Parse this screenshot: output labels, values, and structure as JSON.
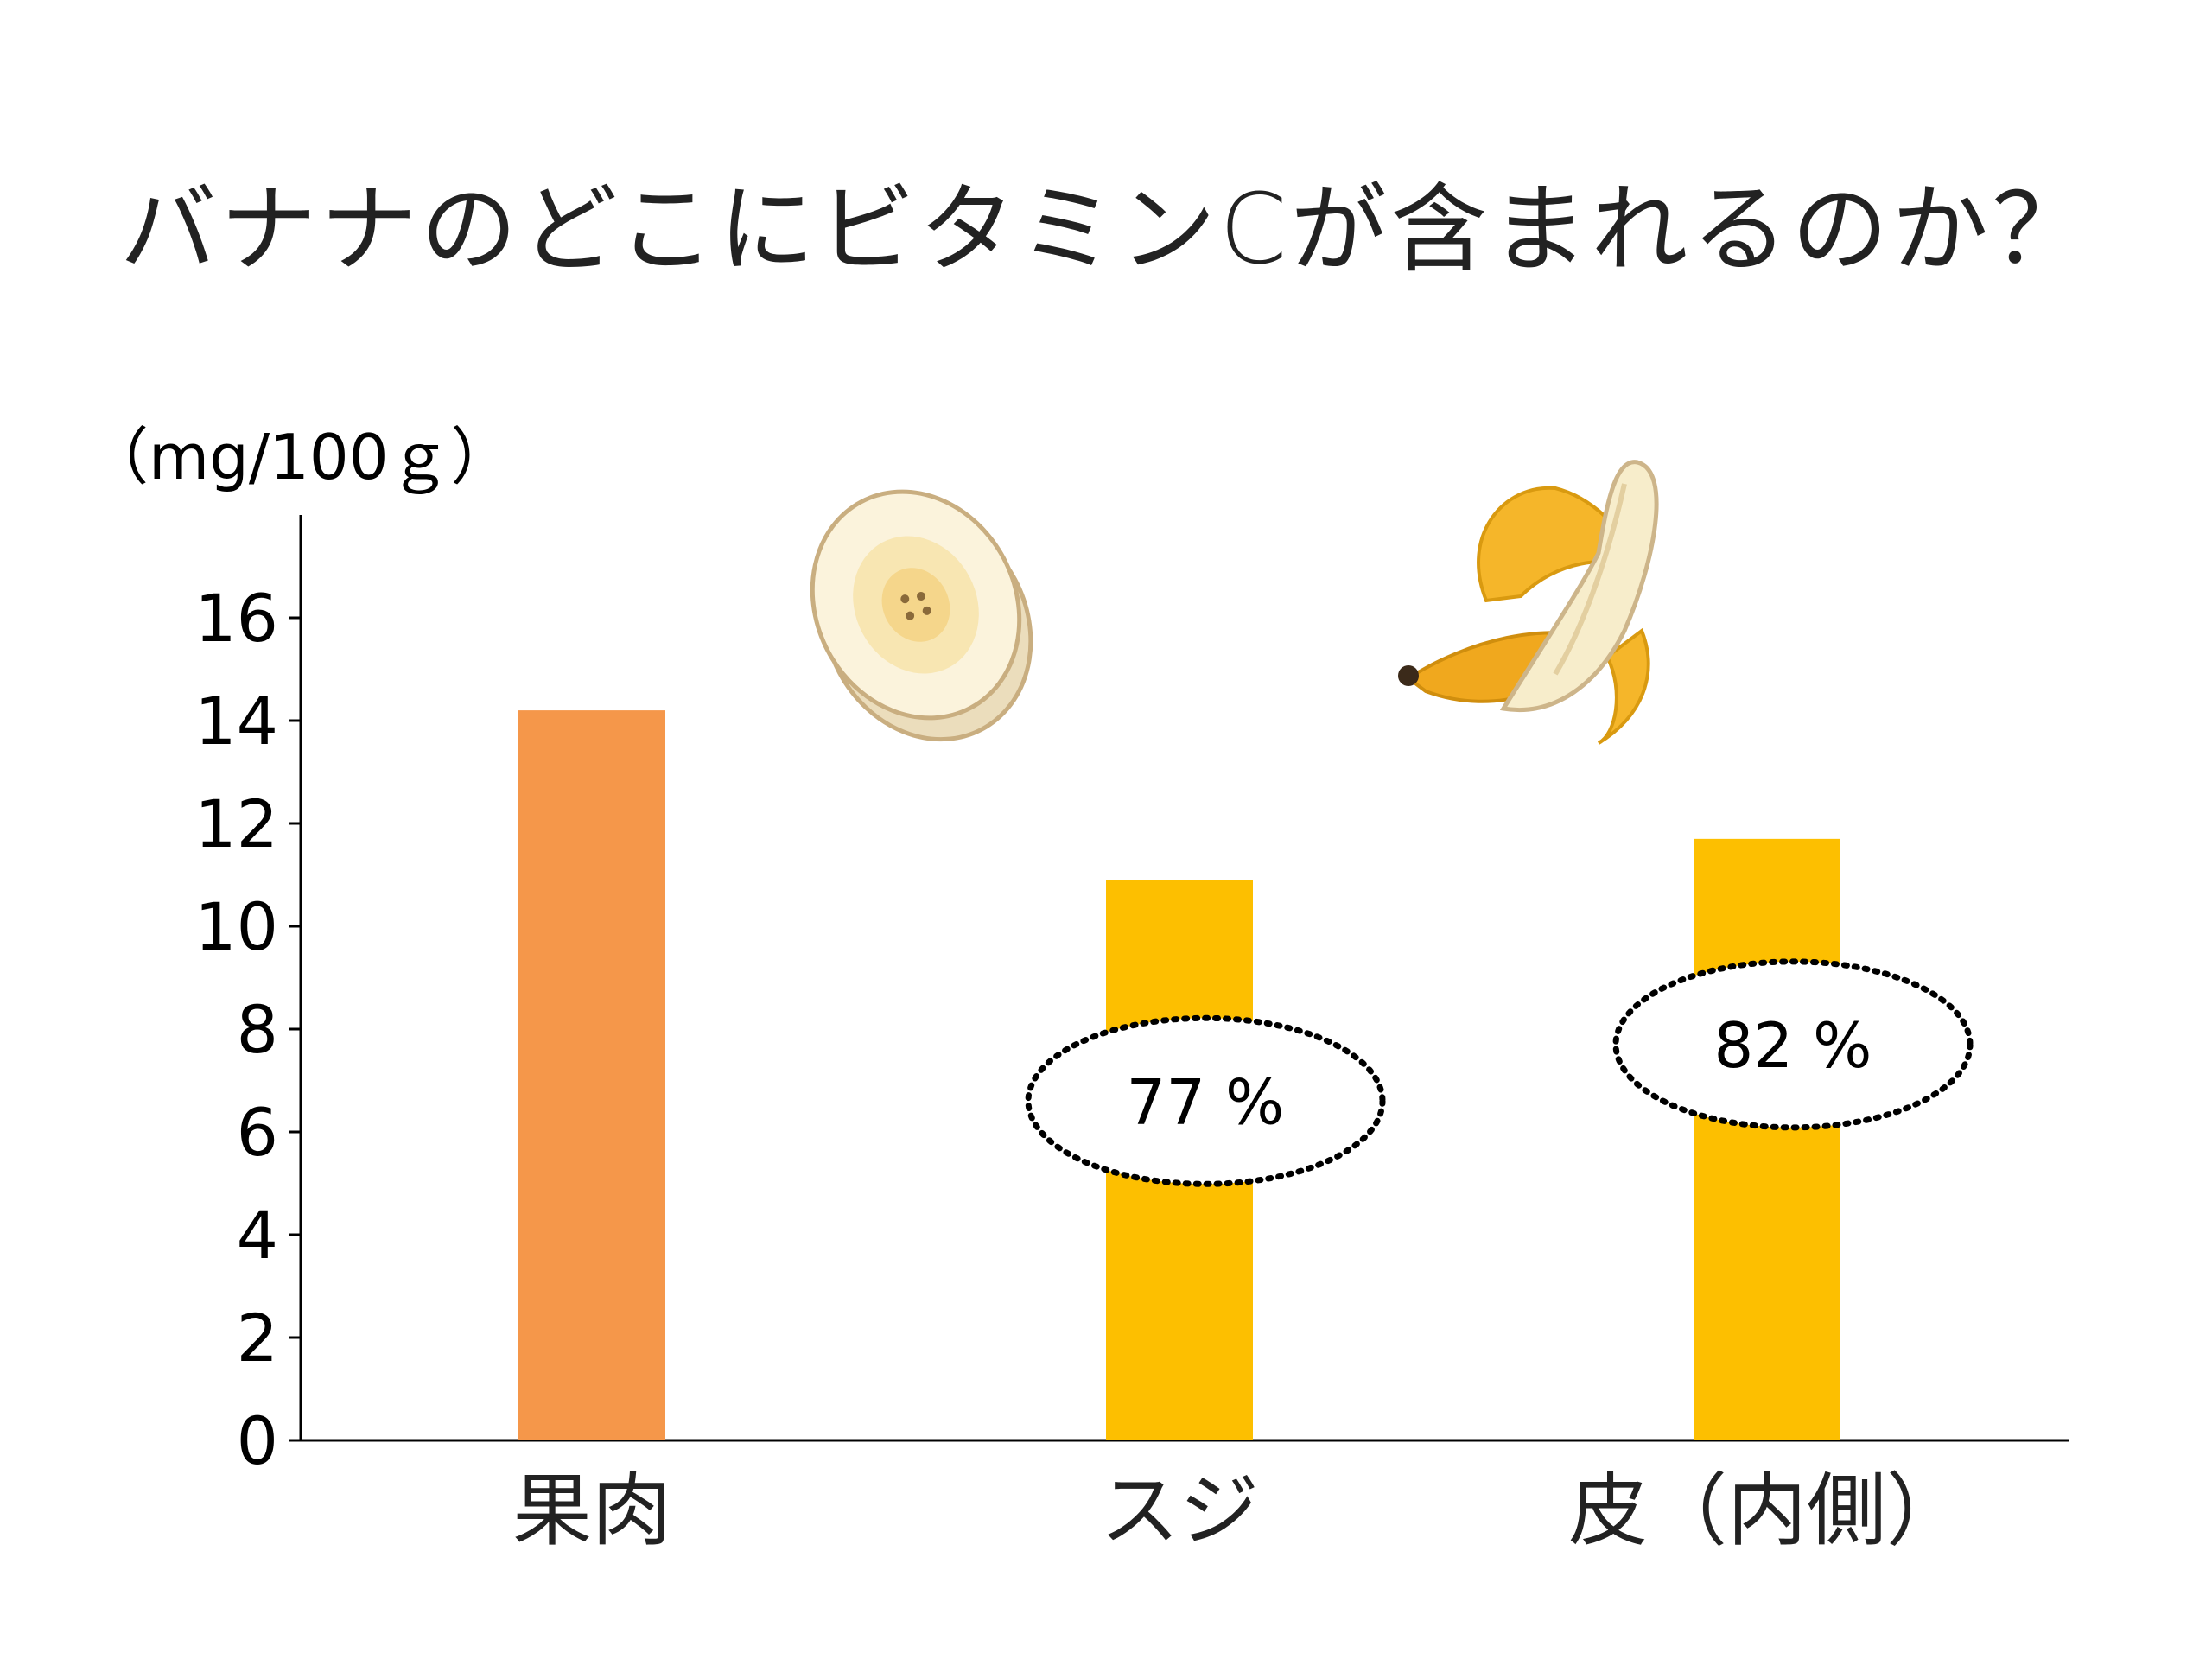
{
  "title": "バナナのどこにビタミンCが含まれるのか？",
  "unit_label": "（mg/100ｇ）",
  "colors": {
    "flesh": "#F5974A",
    "other": "#FDBF00",
    "axis": "#000000"
  },
  "icons": [
    "banana-slice-icon",
    "peeled-banana-icon"
  ],
  "chart_data": {
    "type": "bar",
    "title": "バナナのどこにビタミンCが含まれるのか？",
    "ylabel": "（mg/100ｇ）",
    "xlabel": "",
    "categories": [
      "果肉",
      "スジ",
      "皮（内側）"
    ],
    "values": [
      14.2,
      10.9,
      11.7
    ],
    "ylim": [
      0,
      18
    ],
    "yticks": [
      0,
      2,
      4,
      6,
      8,
      10,
      12,
      14,
      16
    ],
    "grid": false,
    "annotations": [
      {
        "category": "スジ",
        "text": "77 %",
        "y": 6.6
      },
      {
        "category": "皮（内側）",
        "text": "82 %",
        "y": 7.7
      }
    ]
  }
}
